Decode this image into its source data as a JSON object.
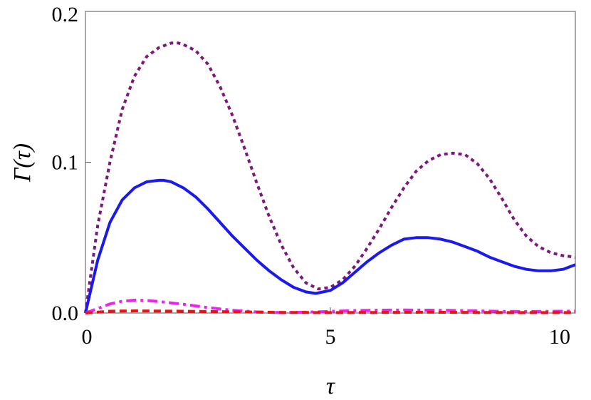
{
  "chart_data": {
    "type": "line",
    "title": "",
    "xlabel": "τ",
    "ylabel": "Γ(τ)",
    "xlim": [
      0,
      10
    ],
    "ylim": [
      0,
      0.2
    ],
    "x_ticks": [
      0,
      5,
      10
    ],
    "x_tick_labels": [
      "0",
      "5",
      "10"
    ],
    "y_ticks": [
      0,
      0.1,
      0.2
    ],
    "y_tick_labels": [
      "0.0",
      "0.1",
      "0.2"
    ],
    "grid": false,
    "legend": "none",
    "series": [
      {
        "style": "dotted",
        "color": "#7b1a7b",
        "x": [
          0,
          0.25,
          0.5,
          0.75,
          1.0,
          1.25,
          1.5,
          1.75,
          1.9,
          2.0,
          2.25,
          2.5,
          2.75,
          3.0,
          3.25,
          3.5,
          3.75,
          4.0,
          4.25,
          4.5,
          4.75,
          5.0,
          5.25,
          5.5,
          5.75,
          6.0,
          6.25,
          6.5,
          6.75,
          7.0,
          7.25,
          7.5,
          7.75,
          8.0,
          8.25,
          8.5,
          8.75,
          9.0,
          9.25,
          9.5,
          9.75,
          10.0
        ],
        "y": [
          0,
          0.058,
          0.1,
          0.135,
          0.157,
          0.17,
          0.176,
          0.179,
          0.179,
          0.178,
          0.174,
          0.165,
          0.15,
          0.131,
          0.109,
          0.086,
          0.064,
          0.045,
          0.03,
          0.02,
          0.016,
          0.017,
          0.022,
          0.031,
          0.043,
          0.056,
          0.07,
          0.083,
          0.094,
          0.101,
          0.105,
          0.106,
          0.105,
          0.099,
          0.089,
          0.076,
          0.062,
          0.051,
          0.044,
          0.04,
          0.038,
          0.037
        ]
      },
      {
        "style": "solid",
        "color": "#1a1aee",
        "x": [
          0,
          0.25,
          0.5,
          0.75,
          1.0,
          1.25,
          1.5,
          1.6,
          1.75,
          2.0,
          2.25,
          2.5,
          2.75,
          3.0,
          3.25,
          3.5,
          3.75,
          4.0,
          4.25,
          4.5,
          4.7,
          5.0,
          5.25,
          5.5,
          5.75,
          6.0,
          6.25,
          6.5,
          6.75,
          7.0,
          7.25,
          7.5,
          7.75,
          8.0,
          8.25,
          8.5,
          8.75,
          9.0,
          9.25,
          9.5,
          9.75,
          10.0
        ],
        "y": [
          0,
          0.035,
          0.06,
          0.075,
          0.083,
          0.087,
          0.088,
          0.088,
          0.087,
          0.083,
          0.077,
          0.069,
          0.06,
          0.051,
          0.043,
          0.035,
          0.028,
          0.022,
          0.017,
          0.014,
          0.013,
          0.015,
          0.02,
          0.027,
          0.034,
          0.04,
          0.045,
          0.049,
          0.05,
          0.05,
          0.049,
          0.047,
          0.044,
          0.041,
          0.037,
          0.034,
          0.031,
          0.029,
          0.028,
          0.028,
          0.029,
          0.032
        ]
      },
      {
        "style": "dash-dot",
        "color": "#ee22ee",
        "x": [
          0,
          0.25,
          0.5,
          0.75,
          1.0,
          1.25,
          1.5,
          2.0,
          2.5,
          3.0,
          3.5,
          4.0,
          4.5,
          5.0,
          5.5,
          6.0,
          6.5,
          7.0,
          7.5,
          8.0,
          8.5,
          9.0,
          9.5,
          10.0
        ],
        "y": [
          0,
          0.003,
          0.006,
          0.0078,
          0.0085,
          0.0083,
          0.0076,
          0.0058,
          0.0036,
          0.0018,
          0.0007,
          0.0003,
          0.0005,
          0.0011,
          0.0016,
          0.0019,
          0.002,
          0.0019,
          0.0017,
          0.0014,
          0.0011,
          0.001,
          0.0011,
          0.0013
        ]
      },
      {
        "style": "dashed",
        "color": "#ee1111",
        "x": [
          0,
          0.5,
          1.0,
          2.0,
          3.0,
          4.0,
          5.0,
          6.0,
          7.0,
          8.0,
          9.0,
          10.0
        ],
        "y": [
          0,
          0.0012,
          0.0014,
          0.0012,
          0.0008,
          0.0004,
          0.0003,
          0.0004,
          0.0005,
          0.0004,
          0.0003,
          0.0003
        ]
      }
    ]
  }
}
